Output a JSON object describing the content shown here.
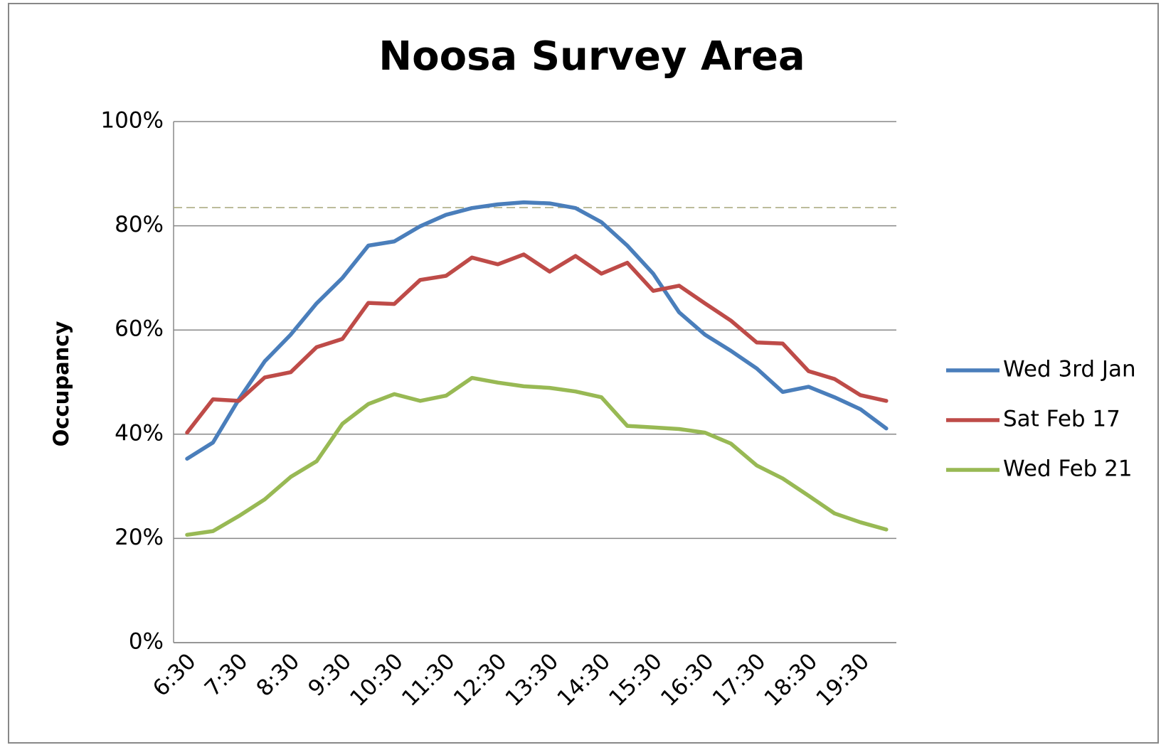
{
  "chart_data": {
    "type": "line",
    "title": "Noosa Survey Area",
    "y_label": "Occupancy",
    "categories": [
      "6:30",
      null,
      "7:30",
      null,
      "8:30",
      null,
      "9:30",
      null,
      "10:30",
      null,
      "11:30",
      null,
      "12:30",
      null,
      "13:30",
      null,
      "14:30",
      null,
      "15:30",
      null,
      "16:30",
      null,
      "17:30",
      null,
      "18:30",
      null,
      "19:30",
      null
    ],
    "series": [
      {
        "name": "Wed 3rd Jan",
        "color": "#4a7ebb",
        "values": [
          35.3,
          38.4,
          46.7,
          54,
          59.1,
          65.1,
          70,
          76.2,
          77,
          79.9,
          82.1,
          83.4,
          84.1,
          84.5,
          84.3,
          83.4,
          80.7,
          76.2,
          70.8,
          63.4,
          59.1,
          56,
          52.6,
          48.1,
          49.1,
          47.1,
          44.8,
          41.1
        ]
      },
      {
        "name": "Sat Feb 17",
        "color": "#be4b48",
        "values": [
          40.3,
          46.7,
          46.4,
          50.9,
          51.9,
          56.7,
          58.3,
          65.2,
          65,
          69.6,
          70.4,
          73.9,
          72.6,
          74.5,
          71.2,
          74.2,
          70.8,
          72.9,
          67.5,
          68.5,
          65.1,
          61.8,
          57.6,
          57.4,
          52.1,
          50.6,
          47.5,
          46.4
        ]
      },
      {
        "name": "Wed Feb 21",
        "color": "#98b954",
        "values": [
          20.7,
          21.4,
          24.3,
          27.5,
          31.8,
          34.8,
          42,
          45.8,
          47.7,
          46.4,
          47.4,
          50.8,
          49.9,
          49.2,
          48.9,
          48.2,
          47.1,
          41.6,
          41.3,
          41,
          40.3,
          38.2,
          34,
          31.5,
          28.2,
          24.8,
          23.1,
          21.7
        ]
      }
    ],
    "reference_line": 83.5,
    "reference_color": "#a6a67a",
    "ylim": [
      0,
      100
    ],
    "yticks": [
      {
        "value": 0,
        "label": "0%"
      },
      {
        "value": 20,
        "label": "20%"
      },
      {
        "value": 40,
        "label": "40%"
      },
      {
        "value": 60,
        "label": "60%"
      },
      {
        "value": 80,
        "label": "80%"
      },
      {
        "value": 100,
        "label": "100%"
      }
    ],
    "grid": true,
    "legend": "right"
  }
}
